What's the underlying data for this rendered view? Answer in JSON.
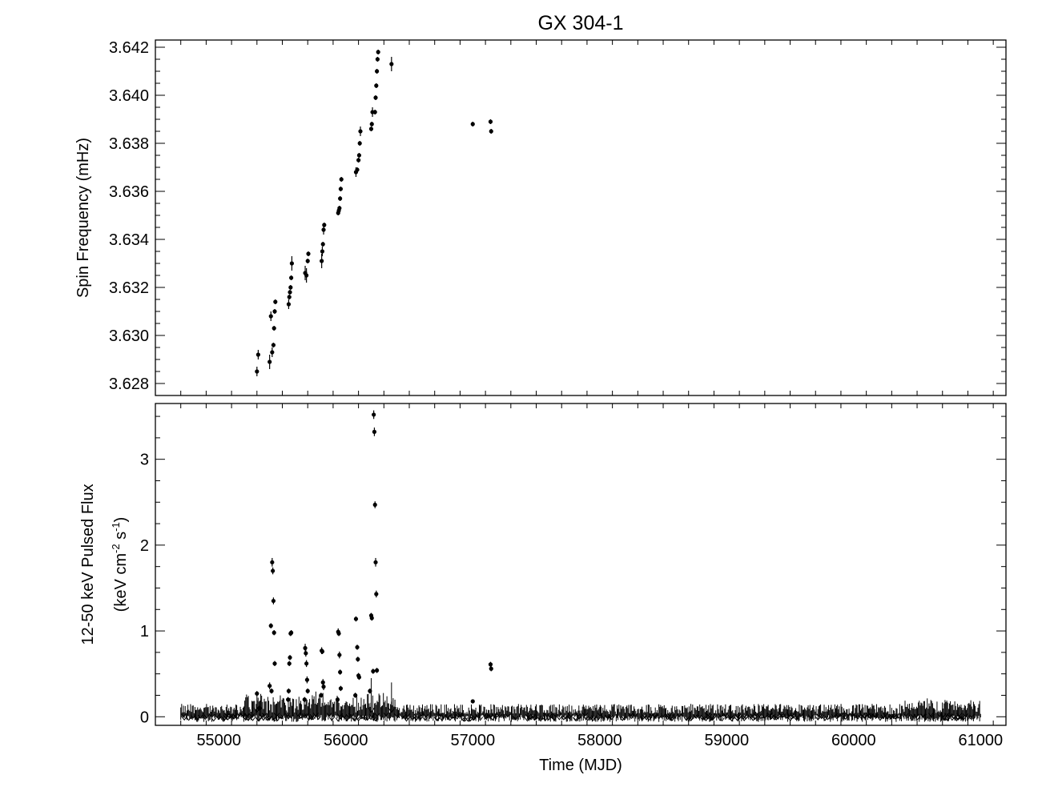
{
  "chart_data": [
    {
      "type": "scatter",
      "title": "GX 304-1",
      "xlabel": "",
      "ylabel": "Spin Frequency (mHz)",
      "xlim": [
        54500,
        61200
      ],
      "ylim": [
        3.6275,
        3.6423
      ],
      "xticks": [
        55000,
        56000,
        57000,
        58000,
        59000,
        60000,
        61000
      ],
      "yticks": [
        3.628,
        3.63,
        3.632,
        3.634,
        3.636,
        3.638,
        3.64,
        3.642
      ],
      "yticklabels": [
        "3.628",
        "3.630",
        "3.632",
        "3.634",
        "3.636",
        "3.638",
        "3.640",
        "3.642"
      ],
      "series": [
        {
          "points": [
            [
              55300,
              3.6285,
              0.0002
            ],
            [
              55310,
              3.6292,
              0.0002
            ],
            [
              55400,
              3.6289,
              0.0003
            ],
            [
              55410,
              3.6308,
              0.0002
            ],
            [
              55420,
              3.6293,
              0.0002
            ],
            [
              55430,
              3.6296,
              0.0001
            ],
            [
              55435,
              3.6303,
              0.0001
            ],
            [
              55440,
              3.631,
              0.0001
            ],
            [
              55445,
              3.6314,
              0.0001
            ],
            [
              55550,
              3.6313,
              0.0002
            ],
            [
              55555,
              3.6316,
              0.0001
            ],
            [
              55560,
              3.6318,
              0.0001
            ],
            [
              55565,
              3.632,
              0.0001
            ],
            [
              55570,
              3.6324,
              0.0001
            ],
            [
              55575,
              3.633,
              0.0003
            ],
            [
              55680,
              3.6326,
              0.0003
            ],
            [
              55690,
              3.6325,
              0.0003
            ],
            [
              55700,
              3.6331,
              0.0001
            ],
            [
              55705,
              3.6334,
              0.0001
            ],
            [
              55810,
              3.6331,
              0.0003
            ],
            [
              55815,
              3.6335,
              0.0002
            ],
            [
              55820,
              3.6338,
              0.0001
            ],
            [
              55825,
              3.6344,
              0.0002
            ],
            [
              55830,
              3.6346,
              0.0001
            ],
            [
              55940,
              3.6351,
              0.0001
            ],
            [
              55945,
              3.6352,
              0.0001
            ],
            [
              55950,
              3.6353,
              0.0001
            ],
            [
              55955,
              3.6357,
              0.0001
            ],
            [
              55960,
              3.6361,
              0.0001
            ],
            [
              55965,
              3.6365,
              0.0001
            ],
            [
              56080,
              3.6368,
              0.0002
            ],
            [
              56090,
              3.6369,
              0.0001
            ],
            [
              56100,
              3.6373,
              0.0001
            ],
            [
              56105,
              3.6375,
              0.0001
            ],
            [
              56110,
              3.638,
              0.0001
            ],
            [
              56115,
              3.6385,
              0.0002
            ],
            [
              56200,
              3.6386,
              0.0001
            ],
            [
              56205,
              3.6388,
              0.0001
            ],
            [
              56210,
              3.6393,
              0.0002
            ],
            [
              56230,
              3.6393,
              0.0001
            ],
            [
              56235,
              3.6399,
              0.0001
            ],
            [
              56240,
              3.6404,
              0.0001
            ],
            [
              56245,
              3.641,
              0.0001
            ],
            [
              56250,
              3.6415,
              0.0001
            ],
            [
              56255,
              3.6418,
              0.0001
            ],
            [
              56360,
              3.6413,
              0.0003
            ],
            [
              57000,
              3.6388,
              0.0001
            ],
            [
              57140,
              3.6389,
              0.0001
            ],
            [
              57145,
              3.6385,
              0.0001
            ]
          ]
        }
      ]
    },
    {
      "type": "scatter",
      "title": "",
      "xlabel": "Time (MJD)",
      "ylabel": "12-50 keV Pulsed Flux",
      "ylabel2": "(keV cm",
      "ylabel2_exp1": "-2",
      "ylabel2_mid": " s",
      "ylabel2_exp2": "-1",
      "ylabel2_end": ")",
      "xlim": [
        54500,
        61200
      ],
      "ylim": [
        -0.1,
        3.65
      ],
      "xticks": [
        55000,
        56000,
        57000,
        58000,
        59000,
        60000,
        61000
      ],
      "xticklabels": [
        "55000",
        "56000",
        "57000",
        "58000",
        "59000",
        "60000",
        "61000"
      ],
      "yticks": [
        0,
        1,
        2,
        3
      ],
      "yticklabels": [
        "0",
        "1",
        "2",
        "3"
      ],
      "noise_range": [
        54700,
        61000
      ],
      "noise_level": 0.03,
      "series": [
        {
          "points": [
            [
              55300,
              0.27,
              0.03
            ],
            [
              55320,
              0.1,
              0.03
            ],
            [
              55400,
              0.36,
              0.04
            ],
            [
              55420,
              1.8,
              0.05
            ],
            [
              55425,
              1.7,
              0.04
            ],
            [
              55430,
              1.35,
              0.04
            ],
            [
              55410,
              1.06,
              0.03
            ],
            [
              55435,
              0.98,
              0.03
            ],
            [
              55440,
              0.62,
              0.03
            ],
            [
              55415,
              0.3,
              0.03
            ],
            [
              55550,
              0.3,
              0.03
            ],
            [
              55555,
              0.62,
              0.03
            ],
            [
              55560,
              0.69,
              0.03
            ],
            [
              55565,
              0.97,
              0.03
            ],
            [
              55570,
              0.98,
              0.03
            ],
            [
              55545,
              0.2,
              0.03
            ],
            [
              55680,
              0.8,
              0.05
            ],
            [
              55685,
              0.74,
              0.04
            ],
            [
              55690,
              0.62,
              0.04
            ],
            [
              55695,
              0.43,
              0.04
            ],
            [
              55700,
              0.3,
              0.03
            ],
            [
              55675,
              0.2,
              0.03
            ],
            [
              55810,
              0.77,
              0.04
            ],
            [
              55815,
              0.76,
              0.03
            ],
            [
              55820,
              0.4,
              0.04
            ],
            [
              55825,
              0.35,
              0.04
            ],
            [
              55805,
              0.25,
              0.03
            ],
            [
              55940,
              0.99,
              0.04
            ],
            [
              55945,
              0.97,
              0.03
            ],
            [
              55950,
              0.72,
              0.04
            ],
            [
              55955,
              0.52,
              0.03
            ],
            [
              55960,
              0.33,
              0.03
            ],
            [
              55935,
              0.2,
              0.03
            ],
            [
              56080,
              1.14,
              0.03
            ],
            [
              56090,
              0.81,
              0.03
            ],
            [
              56095,
              0.67,
              0.03
            ],
            [
              56100,
              0.48,
              0.03
            ],
            [
              56105,
              0.46,
              0.03
            ],
            [
              56075,
              0.25,
              0.03
            ],
            [
              56200,
              1.18,
              0.03
            ],
            [
              56205,
              1.15,
              0.03
            ],
            [
              56220,
              3.52,
              0.05
            ],
            [
              56225,
              3.32,
              0.05
            ],
            [
              56230,
              2.47,
              0.04
            ],
            [
              56235,
              1.8,
              0.05
            ],
            [
              56240,
              1.43,
              0.04
            ],
            [
              56215,
              0.53,
              0.03
            ],
            [
              56245,
              0.54,
              0.03
            ],
            [
              56190,
              0.3,
              0.03
            ],
            [
              57000,
              0.18,
              0.02
            ],
            [
              57140,
              0.61,
              0.03
            ],
            [
              57145,
              0.56,
              0.03
            ]
          ]
        }
      ]
    }
  ]
}
